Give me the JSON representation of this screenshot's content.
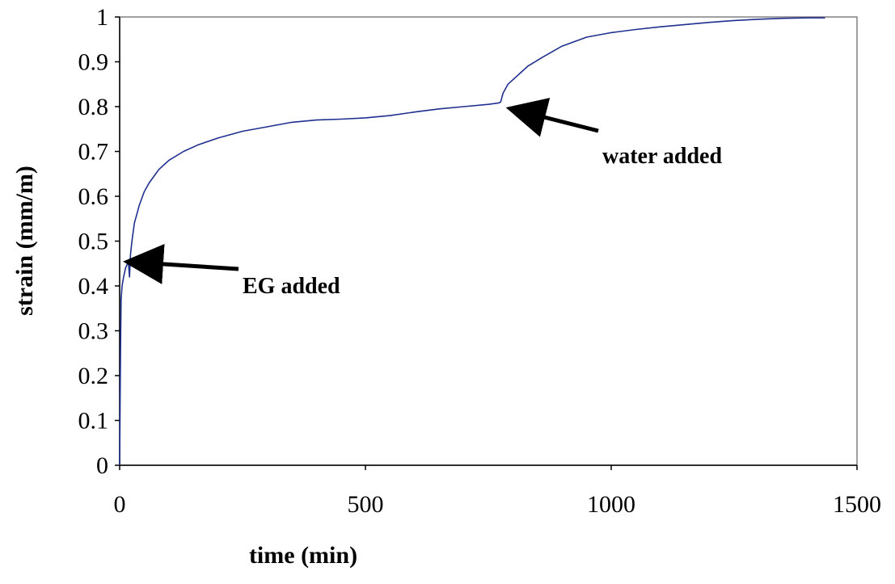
{
  "chart_data": {
    "type": "line",
    "xlabel": "time (min)",
    "ylabel": "strain (mm/m)",
    "xlim": [
      0,
      1500
    ],
    "ylim": [
      0,
      1
    ],
    "xticks": [
      0,
      500,
      1000,
      1500
    ],
    "xtick_labels": [
      "0",
      "500",
      "1000",
      "1500"
    ],
    "yticks": [
      0,
      0.1,
      0.2,
      0.3,
      0.4,
      0.5,
      0.6,
      0.7,
      0.8,
      0.9,
      1
    ],
    "ytick_labels": [
      "0",
      "0.1",
      "0.2",
      "0.3",
      "0.4",
      "0.5",
      "0.6",
      "0.7",
      "0.8",
      "0.9",
      "1"
    ],
    "grid": false,
    "line_color": "#1f2f8f",
    "series": [
      {
        "x": [
          0,
          1,
          2,
          3,
          5,
          8,
          12,
          16,
          18,
          20,
          22,
          25,
          30,
          40,
          50,
          60,
          80,
          100,
          130,
          160,
          200,
          250,
          300,
          350,
          400,
          450,
          500,
          550,
          600,
          650,
          700,
          750,
          770,
          775,
          780,
          790,
          800,
          830,
          860,
          900,
          950,
          1000,
          1050,
          1100,
          1150,
          1200,
          1250,
          1300,
          1350,
          1400,
          1435
        ],
        "y": [
          0,
          0.15,
          0.28,
          0.37,
          0.4,
          0.42,
          0.44,
          0.45,
          0.45,
          0.42,
          0.47,
          0.5,
          0.54,
          0.58,
          0.61,
          0.63,
          0.66,
          0.68,
          0.7,
          0.715,
          0.73,
          0.745,
          0.755,
          0.765,
          0.77,
          0.772,
          0.775,
          0.78,
          0.788,
          0.795,
          0.8,
          0.805,
          0.808,
          0.81,
          0.83,
          0.85,
          0.86,
          0.89,
          0.91,
          0.935,
          0.955,
          0.965,
          0.972,
          0.978,
          0.983,
          0.988,
          0.992,
          0.995,
          0.997,
          0.998,
          0.998
        ]
      }
    ],
    "annotations": [
      {
        "text": "EG added",
        "point_x": 20,
        "point_y": 0.45
      },
      {
        "text": "water added",
        "point_x": 800,
        "point_y": 0.795
      }
    ]
  }
}
